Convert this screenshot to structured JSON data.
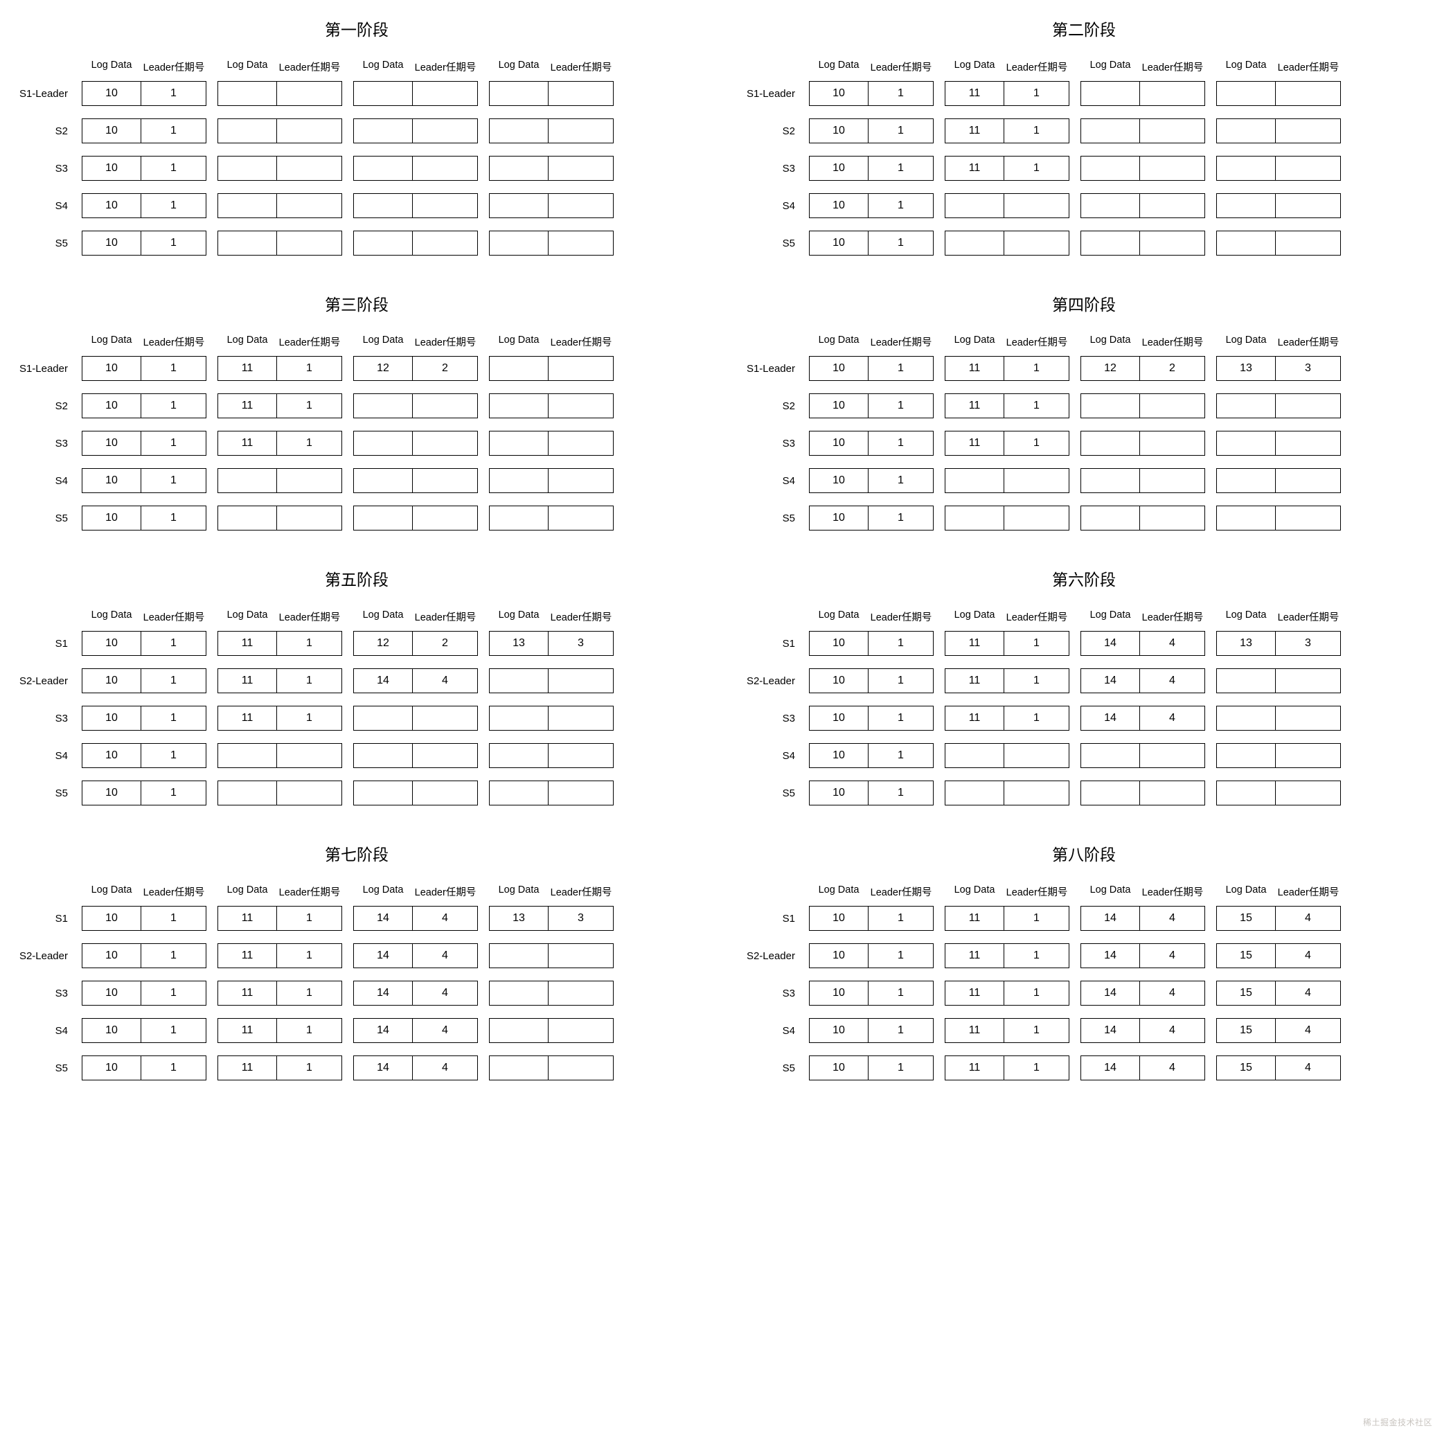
{
  "col_header_left": "Log Data",
  "col_header_right": "Leader任期号",
  "watermark": "稀土掘金技术社区",
  "row_labels_default": [
    "S1-Leader",
    "S2",
    "S3",
    "S4",
    "S5"
  ],
  "row_labels_s2leader": [
    "S1",
    "S2-Leader",
    "S3",
    "S4",
    "S5"
  ],
  "stages": [
    {
      "title": "第一阶段",
      "row_labels_key": "row_labels_default",
      "rows": [
        [
          [
            "10",
            "1"
          ],
          [
            "",
            ""
          ],
          [
            "",
            ""
          ],
          [
            "",
            ""
          ]
        ],
        [
          [
            "10",
            "1"
          ],
          [
            "",
            ""
          ],
          [
            "",
            ""
          ],
          [
            "",
            ""
          ]
        ],
        [
          [
            "10",
            "1"
          ],
          [
            "",
            ""
          ],
          [
            "",
            ""
          ],
          [
            "",
            ""
          ]
        ],
        [
          [
            "10",
            "1"
          ],
          [
            "",
            ""
          ],
          [
            "",
            ""
          ],
          [
            "",
            ""
          ]
        ],
        [
          [
            "10",
            "1"
          ],
          [
            "",
            ""
          ],
          [
            "",
            ""
          ],
          [
            "",
            ""
          ]
        ]
      ]
    },
    {
      "title": "第二阶段",
      "row_labels_key": "row_labels_default",
      "rows": [
        [
          [
            "10",
            "1"
          ],
          [
            "11",
            "1"
          ],
          [
            "",
            ""
          ],
          [
            "",
            ""
          ]
        ],
        [
          [
            "10",
            "1"
          ],
          [
            "11",
            "1"
          ],
          [
            "",
            ""
          ],
          [
            "",
            ""
          ]
        ],
        [
          [
            "10",
            "1"
          ],
          [
            "11",
            "1"
          ],
          [
            "",
            ""
          ],
          [
            "",
            ""
          ]
        ],
        [
          [
            "10",
            "1"
          ],
          [
            "",
            ""
          ],
          [
            "",
            ""
          ],
          [
            "",
            ""
          ]
        ],
        [
          [
            "10",
            "1"
          ],
          [
            "",
            ""
          ],
          [
            "",
            ""
          ],
          [
            "",
            ""
          ]
        ]
      ]
    },
    {
      "title": "第三阶段",
      "row_labels_key": "row_labels_default",
      "rows": [
        [
          [
            "10",
            "1"
          ],
          [
            "11",
            "1"
          ],
          [
            "12",
            "2"
          ],
          [
            "",
            ""
          ]
        ],
        [
          [
            "10",
            "1"
          ],
          [
            "11",
            "1"
          ],
          [
            "",
            ""
          ],
          [
            "",
            ""
          ]
        ],
        [
          [
            "10",
            "1"
          ],
          [
            "11",
            "1"
          ],
          [
            "",
            ""
          ],
          [
            "",
            ""
          ]
        ],
        [
          [
            "10",
            "1"
          ],
          [
            "",
            ""
          ],
          [
            "",
            ""
          ],
          [
            "",
            ""
          ]
        ],
        [
          [
            "10",
            "1"
          ],
          [
            "",
            ""
          ],
          [
            "",
            ""
          ],
          [
            "",
            ""
          ]
        ]
      ]
    },
    {
      "title": "第四阶段",
      "row_labels_key": "row_labels_default",
      "rows": [
        [
          [
            "10",
            "1"
          ],
          [
            "11",
            "1"
          ],
          [
            "12",
            "2"
          ],
          [
            "13",
            "3"
          ]
        ],
        [
          [
            "10",
            "1"
          ],
          [
            "11",
            "1"
          ],
          [
            "",
            ""
          ],
          [
            "",
            ""
          ]
        ],
        [
          [
            "10",
            "1"
          ],
          [
            "11",
            "1"
          ],
          [
            "",
            ""
          ],
          [
            "",
            ""
          ]
        ],
        [
          [
            "10",
            "1"
          ],
          [
            "",
            ""
          ],
          [
            "",
            ""
          ],
          [
            "",
            ""
          ]
        ],
        [
          [
            "10",
            "1"
          ],
          [
            "",
            ""
          ],
          [
            "",
            ""
          ],
          [
            "",
            ""
          ]
        ]
      ]
    },
    {
      "title": "第五阶段",
      "row_labels_key": "row_labels_s2leader",
      "rows": [
        [
          [
            "10",
            "1"
          ],
          [
            "11",
            "1"
          ],
          [
            "12",
            "2"
          ],
          [
            "13",
            "3"
          ]
        ],
        [
          [
            "10",
            "1"
          ],
          [
            "11",
            "1"
          ],
          [
            "14",
            "4"
          ],
          [
            "",
            ""
          ]
        ],
        [
          [
            "10",
            "1"
          ],
          [
            "11",
            "1"
          ],
          [
            "",
            ""
          ],
          [
            "",
            ""
          ]
        ],
        [
          [
            "10",
            "1"
          ],
          [
            "",
            ""
          ],
          [
            "",
            ""
          ],
          [
            "",
            ""
          ]
        ],
        [
          [
            "10",
            "1"
          ],
          [
            "",
            ""
          ],
          [
            "",
            ""
          ],
          [
            "",
            ""
          ]
        ]
      ]
    },
    {
      "title": "第六阶段",
      "row_labels_key": "row_labels_s2leader",
      "rows": [
        [
          [
            "10",
            "1"
          ],
          [
            "11",
            "1"
          ],
          [
            "14",
            "4"
          ],
          [
            "13",
            "3"
          ]
        ],
        [
          [
            "10",
            "1"
          ],
          [
            "11",
            "1"
          ],
          [
            "14",
            "4"
          ],
          [
            "",
            ""
          ]
        ],
        [
          [
            "10",
            "1"
          ],
          [
            "11",
            "1"
          ],
          [
            "14",
            "4"
          ],
          [
            "",
            ""
          ]
        ],
        [
          [
            "10",
            "1"
          ],
          [
            "",
            ""
          ],
          [
            "",
            ""
          ],
          [
            "",
            ""
          ]
        ],
        [
          [
            "10",
            "1"
          ],
          [
            "",
            ""
          ],
          [
            "",
            ""
          ],
          [
            "",
            ""
          ]
        ]
      ]
    },
    {
      "title": "第七阶段",
      "row_labels_key": "row_labels_s2leader",
      "rows": [
        [
          [
            "10",
            "1"
          ],
          [
            "11",
            "1"
          ],
          [
            "14",
            "4"
          ],
          [
            "13",
            "3"
          ]
        ],
        [
          [
            "10",
            "1"
          ],
          [
            "11",
            "1"
          ],
          [
            "14",
            "4"
          ],
          [
            "",
            ""
          ]
        ],
        [
          [
            "10",
            "1"
          ],
          [
            "11",
            "1"
          ],
          [
            "14",
            "4"
          ],
          [
            "",
            ""
          ]
        ],
        [
          [
            "10",
            "1"
          ],
          [
            "11",
            "1"
          ],
          [
            "14",
            "4"
          ],
          [
            "",
            ""
          ]
        ],
        [
          [
            "10",
            "1"
          ],
          [
            "11",
            "1"
          ],
          [
            "14",
            "4"
          ],
          [
            "",
            ""
          ]
        ]
      ]
    },
    {
      "title": "第八阶段",
      "row_labels_key": "row_labels_s2leader",
      "rows": [
        [
          [
            "10",
            "1"
          ],
          [
            "11",
            "1"
          ],
          [
            "14",
            "4"
          ],
          [
            "15",
            "4"
          ]
        ],
        [
          [
            "10",
            "1"
          ],
          [
            "11",
            "1"
          ],
          [
            "14",
            "4"
          ],
          [
            "15",
            "4"
          ]
        ],
        [
          [
            "10",
            "1"
          ],
          [
            "11",
            "1"
          ],
          [
            "14",
            "4"
          ],
          [
            "15",
            "4"
          ]
        ],
        [
          [
            "10",
            "1"
          ],
          [
            "11",
            "1"
          ],
          [
            "14",
            "4"
          ],
          [
            "15",
            "4"
          ]
        ],
        [
          [
            "10",
            "1"
          ],
          [
            "11",
            "1"
          ],
          [
            "14",
            "4"
          ],
          [
            "15",
            "4"
          ]
        ]
      ]
    }
  ]
}
